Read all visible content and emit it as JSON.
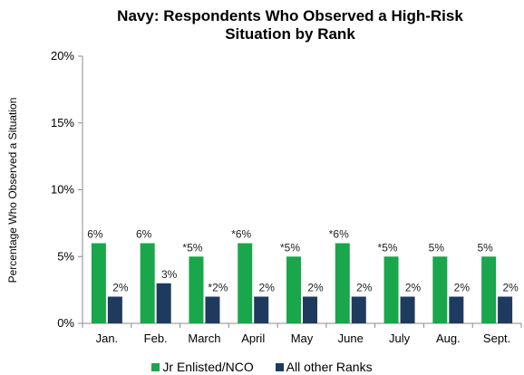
{
  "chart_data": {
    "type": "bar",
    "title": [
      "Navy: Respondents Who Observed a High-Risk",
      "Situation by Rank"
    ],
    "ylabel": "Percentage Who Observed a Situation",
    "xlabel": "",
    "categories": [
      "Jan.",
      "Feb.",
      "March",
      "April",
      "May",
      "June",
      "July",
      "Aug.",
      "Sept."
    ],
    "ylim": [
      0,
      20
    ],
    "yticks": [
      "0%",
      "5%",
      "10%",
      "15%",
      "20%"
    ],
    "grid": false,
    "legend_position": "bottom",
    "series": [
      {
        "name": "Jr Enlisted/NCO",
        "color": "#1aa64a",
        "values": [
          6,
          6,
          5,
          6,
          5,
          6,
          5,
          5,
          5
        ],
        "labels": [
          "6%",
          "6%",
          "*5%",
          "*6%",
          "*5%",
          "*6%",
          "*5%",
          "5%",
          "5%"
        ]
      },
      {
        "name": "All other Ranks",
        "color": "#1f3a5f",
        "values": [
          2,
          3,
          2,
          2,
          2,
          2,
          2,
          2,
          2
        ],
        "labels": [
          "2%",
          "3%",
          "*2%",
          "2%",
          "2%",
          "2%",
          "2%",
          "2%",
          "2%"
        ]
      }
    ]
  }
}
